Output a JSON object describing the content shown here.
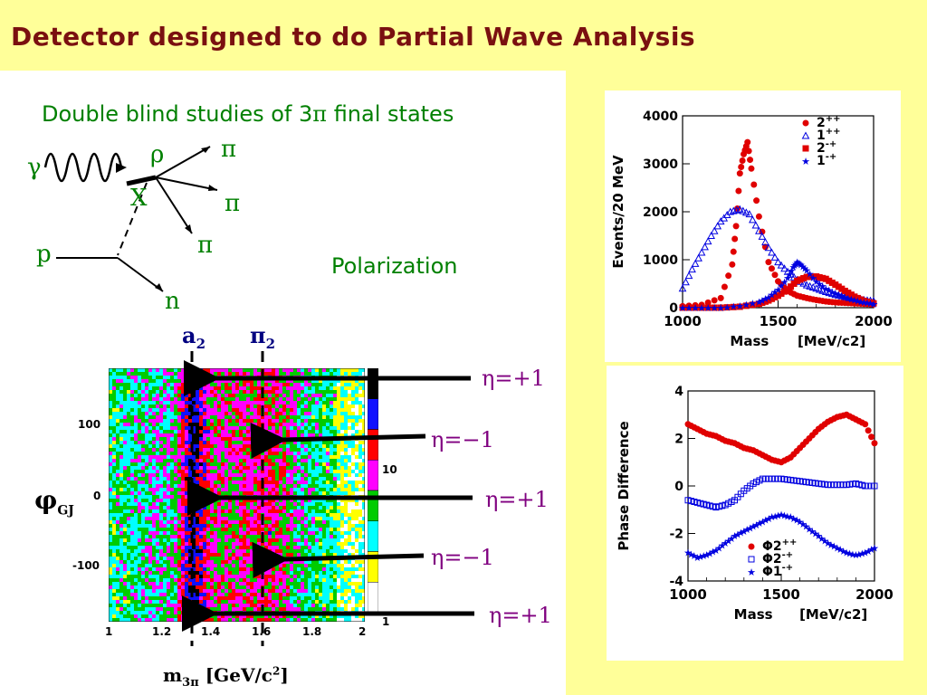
{
  "slide": {
    "title": "Detector designed to do Partial Wave Analysis",
    "subtitle_pre": "Double blind studies of 3",
    "subtitle_greek": "π",
    "subtitle_post": " final states",
    "polarization": "Polarization",
    "feynman": {
      "gamma": "γ",
      "rho": "ρ",
      "x": "X",
      "p": "p",
      "n": "n",
      "pi": "π"
    },
    "colors": {
      "title": "#7a1010",
      "green_text": "#008000",
      "arrow_labels": "#800080",
      "dashed_labels": "#000080"
    }
  },
  "heatmap": {
    "a2_main": "a",
    "a2_sub": "2",
    "pi2_main": "π",
    "pi2_sub": "2",
    "ylabel_main": "φ",
    "ylabel_sub": "GJ",
    "xlabel_main": "m",
    "xlabel_sub": "3π",
    "xlabel_unit": " [GeV/c",
    "xlabel_sup": "2",
    "xlabel_close": "]",
    "arrow_labels": [
      "η=+1",
      "η=−1",
      "η=+1",
      "η=−1",
      "η=+1"
    ],
    "colorbar_labels": [
      "10",
      "1"
    ],
    "colorbar_colors": [
      "#000000",
      "#1010ff",
      "#ff0000",
      "#ff00ff",
      "#00cc00",
      "#00ffff",
      "#ffff00",
      "#ffffff"
    ]
  },
  "chart_data": [
    {
      "type": "scatter",
      "title": "",
      "xlabel": "Mass",
      "xunit": "[MeV/c2]",
      "ylabel": "Events/20 MeV",
      "xlim": [
        1000,
        2000
      ],
      "ylim": [
        0,
        4000
      ],
      "x_ticks": [
        "1000",
        "1500",
        "2000"
      ],
      "y_ticks": [
        "0",
        "1000",
        "2000",
        "3000",
        "4000"
      ],
      "legend_position": "top-right",
      "legend": [
        "2",
        "1",
        "2",
        "1"
      ],
      "legend_sup": [
        "++",
        "++",
        "-+",
        "-+"
      ],
      "series": [
        {
          "name": "2++",
          "color": "#e00000",
          "x": [
            1000,
            1100,
            1200,
            1260,
            1280,
            1300,
            1320,
            1340,
            1360,
            1400,
            1450,
            1500,
            1550,
            1600,
            1650,
            1700,
            1750,
            1800,
            1850,
            1900,
            1950,
            2000
          ],
          "y": [
            30,
            60,
            200,
            900,
            1700,
            2800,
            3200,
            3450,
            2900,
            1900,
            950,
            550,
            350,
            250,
            200,
            160,
            130,
            110,
            100,
            90,
            80,
            70
          ]
        },
        {
          "name": "1++",
          "color": "#0000e0",
          "x": [
            1000,
            1050,
            1100,
            1150,
            1200,
            1250,
            1300,
            1350,
            1400,
            1450,
            1500,
            1550,
            1600,
            1650,
            1700,
            1750,
            1800,
            1850,
            1900,
            1950,
            2000
          ],
          "y": [
            400,
            800,
            1150,
            1500,
            1800,
            2000,
            2050,
            1950,
            1600,
            1250,
            950,
            750,
            580,
            470,
            400,
            330,
            270,
            230,
            190,
            160,
            140
          ]
        },
        {
          "name": "2-+",
          "color": "#e00000",
          "x": [
            1000,
            1100,
            1200,
            1300,
            1400,
            1450,
            1500,
            1550,
            1600,
            1650,
            1700,
            1750,
            1800,
            1850,
            1900,
            1950,
            2000
          ],
          "y": [
            0,
            0,
            0,
            20,
            80,
            150,
            250,
            380,
            560,
            640,
            650,
            600,
            480,
            350,
            230,
            140,
            90
          ]
        },
        {
          "name": "1-+",
          "color": "#0000e0",
          "x": [
            1000,
            1100,
            1200,
            1300,
            1400,
            1450,
            1500,
            1550,
            1580,
            1600,
            1620,
            1650,
            1700,
            1750,
            1800,
            1850,
            1900,
            1950,
            2000
          ],
          "y": [
            0,
            0,
            0,
            40,
            120,
            220,
            380,
            620,
            850,
            950,
            900,
            780,
            550,
            400,
            300,
            220,
            160,
            110,
            80
          ]
        }
      ]
    },
    {
      "type": "scatter",
      "title": "",
      "xlabel": "Mass",
      "xunit": "[MeV/c2]",
      "ylabel": "Phase Difference",
      "xlim": [
        1000,
        2000
      ],
      "ylim": [
        -4,
        4
      ],
      "x_ticks": [
        "1000",
        "1500",
        "2000"
      ],
      "y_ticks": [
        "-4",
        "-2",
        "0",
        "2",
        "4"
      ],
      "legend_position": "bottom-right",
      "legend": [
        "Φ2",
        "Φ2",
        "Φ1"
      ],
      "legend_sup": [
        "++",
        "-+",
        "-+"
      ],
      "series": [
        {
          "name": "Φ2++",
          "color": "#e00000",
          "x": [
            1000,
            1050,
            1100,
            1150,
            1200,
            1250,
            1300,
            1350,
            1400,
            1450,
            1500,
            1550,
            1600,
            1650,
            1700,
            1750,
            1800,
            1850,
            1900,
            1950,
            2000
          ],
          "y": [
            2.6,
            2.4,
            2.2,
            2.1,
            1.9,
            1.8,
            1.6,
            1.5,
            1.3,
            1.1,
            1.0,
            1.2,
            1.6,
            2.0,
            2.4,
            2.7,
            2.9,
            3.0,
            2.8,
            2.6,
            1.8
          ]
        },
        {
          "name": "Φ2-+",
          "color": "#0000e0",
          "x": [
            1000,
            1050,
            1100,
            1150,
            1200,
            1250,
            1300,
            1350,
            1400,
            1450,
            1500,
            1550,
            1600,
            1650,
            1700,
            1750,
            1800,
            1850,
            1900,
            1950,
            2000
          ],
          "y": [
            -0.6,
            -0.7,
            -0.8,
            -0.9,
            -0.8,
            -0.6,
            -0.2,
            0.1,
            0.3,
            0.3,
            0.3,
            0.25,
            0.2,
            0.15,
            0.1,
            0.05,
            0.05,
            0.05,
            0.1,
            0.0,
            0.0
          ]
        },
        {
          "name": "Φ1-+",
          "color": "#0000e0",
          "x": [
            1000,
            1050,
            1100,
            1150,
            1200,
            1250,
            1300,
            1350,
            1400,
            1450,
            1500,
            1550,
            1600,
            1650,
            1700,
            1750,
            1800,
            1850,
            1900,
            1950,
            2000
          ],
          "y": [
            -2.8,
            -3.0,
            -2.9,
            -2.7,
            -2.4,
            -2.1,
            -1.9,
            -1.7,
            -1.5,
            -1.3,
            -1.2,
            -1.3,
            -1.5,
            -1.8,
            -2.1,
            -2.4,
            -2.6,
            -2.8,
            -2.9,
            -2.8,
            -2.6
          ]
        }
      ]
    }
  ]
}
